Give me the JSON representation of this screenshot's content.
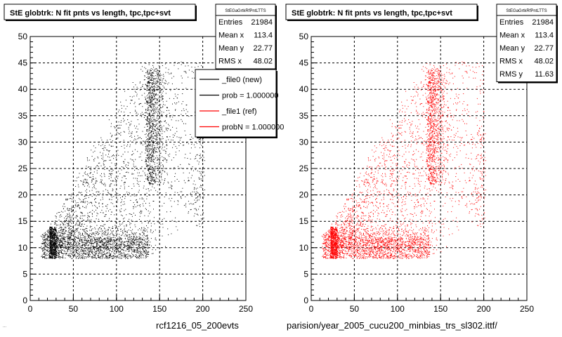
{
  "chart_data": [
    {
      "type": "scatter",
      "title": "StE globtrk: N fit pnts vs length, tpc,tpc+svt",
      "stats": {
        "name": "StEGaGrtkRfPntLTTS",
        "rows": [
          {
            "label": "Entries",
            "value": "21984"
          },
          {
            "label": "Mean x",
            "value": "113.4"
          },
          {
            "label": "Mean y",
            "value": "22.77"
          },
          {
            "label": "RMS x",
            "value": "48.02"
          }
        ]
      },
      "legend": [
        {
          "label": "_file0 (new)",
          "color": "#000000"
        },
        {
          "label": "prob = 1.000000",
          "color": "#000000"
        },
        {
          "label": "_file1 (ref)",
          "color": "#ff0000"
        },
        {
          "label": "probN = 1.000000",
          "color": "#ff0000"
        }
      ],
      "color": "#000000",
      "xlim": [
        0,
        250
      ],
      "ylim": [
        0,
        50
      ],
      "xticks": [
        "0",
        "50",
        "100",
        "150",
        "200",
        "250"
      ],
      "yticks": [
        "0",
        "5",
        "10",
        "15",
        "20",
        "25",
        "30",
        "35",
        "40",
        "45",
        "50"
      ],
      "grid": true
    },
    {
      "type": "scatter",
      "title": "StE globtrk: N fit pnts vs length, tpc,tpc+svt",
      "stats": {
        "name": "StEGaGrtkRfPntLTTS",
        "rows": [
          {
            "label": "Entries",
            "value": "21984"
          },
          {
            "label": "Mean x",
            "value": "113.4"
          },
          {
            "label": "Mean y",
            "value": "22.77"
          },
          {
            "label": "RMS x",
            "value": "48.02"
          },
          {
            "label": "RMS y",
            "value": "11.63"
          }
        ]
      },
      "color": "#ff0000",
      "xlim": [
        0,
        250
      ],
      "ylim": [
        0,
        50
      ],
      "xticks": [
        "0",
        "50",
        "100",
        "150",
        "200",
        "250"
      ],
      "yticks": [
        "0",
        "5",
        "10",
        "15",
        "20",
        "25",
        "30",
        "35",
        "40",
        "45",
        "50"
      ],
      "grid": true
    }
  ],
  "footer": {
    "left_caption": "rcf1216_05_200evts",
    "right_caption": "parision/year_2005_cucu200_minbias_trs_sl302.ittf/",
    "tiny_text": "..."
  }
}
